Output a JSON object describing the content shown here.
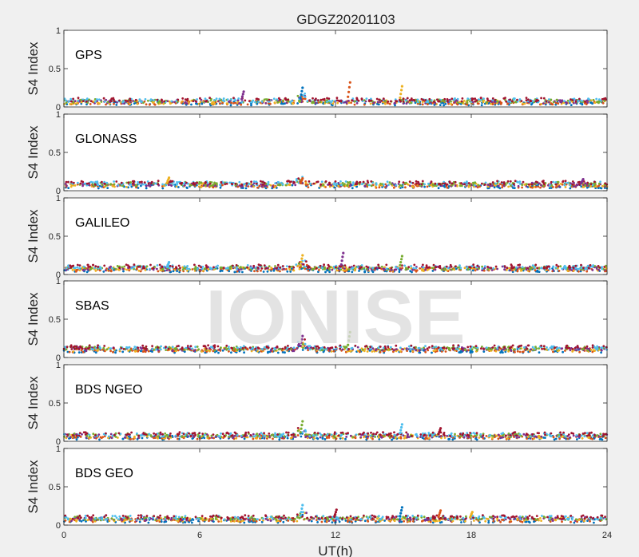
{
  "figure": {
    "title": "GDGZ20201103",
    "xlabel": "UT(h)",
    "watermark": "IONISE"
  },
  "chart_data": {
    "type": "scatter",
    "title": "GDGZ20201103",
    "xlabel": "UT(h)",
    "ylabel": "S4 Index",
    "xlim": [
      0,
      24
    ],
    "ylim": [
      0,
      1
    ],
    "xticks": [
      0,
      6,
      12,
      18,
      24
    ],
    "xtick_labels": [
      "0",
      "6",
      "12",
      "18",
      "24"
    ],
    "yticks": [
      0,
      0.5,
      1
    ],
    "ytick_labels": [
      "0",
      "0.5",
      "1"
    ],
    "grid": false,
    "legend": "none",
    "series_colors": [
      "#0072BD",
      "#D95319",
      "#EDB120",
      "#7E2F8E",
      "#77AC30",
      "#4DBEEE",
      "#A2142F"
    ],
    "panels": [
      {
        "label": "GPS",
        "baseline": 0.07,
        "spikes": [
          {
            "x": 10.5,
            "y": 0.25
          },
          {
            "x": 12.6,
            "y": 0.32
          },
          {
            "x": 14.9,
            "y": 0.27
          },
          {
            "x": 7.9,
            "y": 0.2
          }
        ]
      },
      {
        "label": "GLONASS",
        "baseline": 0.08,
        "spikes": [
          {
            "x": 10.5,
            "y": 0.16
          },
          {
            "x": 4.6,
            "y": 0.17
          },
          {
            "x": 22.9,
            "y": 0.15
          }
        ]
      },
      {
        "label": "GALILEO",
        "baseline": 0.08,
        "spikes": [
          {
            "x": 10.5,
            "y": 0.25
          },
          {
            "x": 12.3,
            "y": 0.28
          },
          {
            "x": 14.9,
            "y": 0.24
          },
          {
            "x": 4.6,
            "y": 0.16
          }
        ]
      },
      {
        "label": "SBAS",
        "baseline": 0.11,
        "spikes": [
          {
            "x": 10.5,
            "y": 0.28
          },
          {
            "x": 12.6,
            "y": 0.33
          }
        ]
      },
      {
        "label": "BDS NGEO",
        "baseline": 0.07,
        "spikes": [
          {
            "x": 10.5,
            "y": 0.26
          },
          {
            "x": 14.9,
            "y": 0.22
          },
          {
            "x": 16.6,
            "y": 0.17
          }
        ]
      },
      {
        "label": "BDS GEO",
        "baseline": 0.08,
        "spikes": [
          {
            "x": 10.5,
            "y": 0.26
          },
          {
            "x": 12.0,
            "y": 0.2
          },
          {
            "x": 14.9,
            "y": 0.23
          },
          {
            "x": 16.6,
            "y": 0.19
          },
          {
            "x": 18.0,
            "y": 0.17
          }
        ]
      }
    ]
  }
}
